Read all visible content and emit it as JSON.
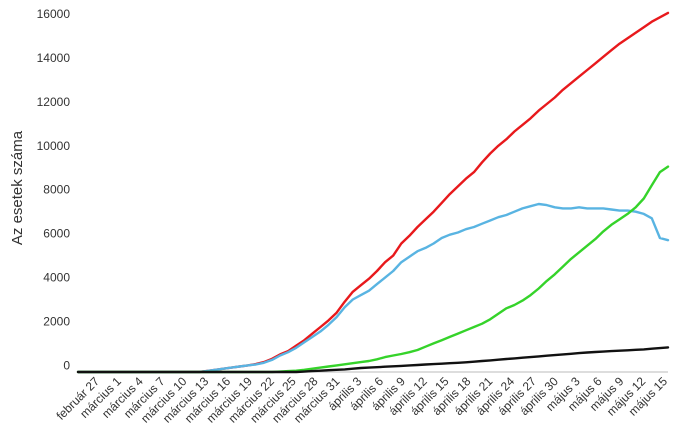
{
  "chart_data": {
    "type": "line",
    "title": "",
    "xlabel": "",
    "ylabel": "Az esetek száma",
    "ylim": [
      -300,
      16000
    ],
    "yticks": [
      0,
      2000,
      4000,
      6000,
      8000,
      10000,
      12000,
      14000,
      16000
    ],
    "grid": false,
    "legend": "none",
    "x_tick_labels": [
      "február 27",
      "március 1",
      "március 4",
      "március 7",
      "március 10",
      "március 13",
      "március 16",
      "március 19",
      "március 22",
      "március 25",
      "március 28",
      "március 31",
      "április 3",
      "április 6",
      "április 9",
      "április 12",
      "április 15",
      "április 18",
      "április 21",
      "április 24",
      "április 27",
      "április 30",
      "május 3",
      "május 6",
      "május 9",
      "május 12",
      "május 15"
    ],
    "series": [
      {
        "color": "#e8191c",
        "values": [
          -300,
          -300,
          -300,
          -300,
          -300,
          -300,
          -300,
          -300,
          -300,
          -300,
          -300,
          -300,
          -300,
          -300,
          -300,
          -300,
          -250,
          -200,
          -150,
          -100,
          -50,
          0,
          60,
          150,
          300,
          500,
          650,
          900,
          1150,
          1450,
          1750,
          2050,
          2400,
          2900,
          3350,
          3650,
          3950,
          4300,
          4700,
          5000,
          5550,
          5900,
          6300,
          6650,
          7000,
          7400,
          7800,
          8150,
          8500,
          8800,
          9250,
          9650,
          10000,
          10300,
          10650,
          10950,
          11250,
          11600,
          11900,
          12200,
          12550,
          12850,
          13150,
          13450,
          13750,
          14050,
          14350,
          14650,
          14900,
          15150,
          15400,
          15650,
          15850,
          16050
        ]
      },
      {
        "color": "#59b4e2",
        "values": [
          -300,
          -300,
          -300,
          -300,
          -300,
          -300,
          -300,
          -300,
          -300,
          -300,
          -300,
          -300,
          -300,
          -300,
          -300,
          -300,
          -250,
          -200,
          -150,
          -100,
          -50,
          0,
          40,
          120,
          250,
          450,
          600,
          800,
          1050,
          1300,
          1550,
          1850,
          2200,
          2650,
          3000,
          3200,
          3400,
          3700,
          4000,
          4300,
          4700,
          4950,
          5200,
          5350,
          5550,
          5800,
          5950,
          6050,
          6200,
          6300,
          6450,
          6600,
          6750,
          6850,
          7000,
          7150,
          7250,
          7350,
          7300,
          7200,
          7150,
          7150,
          7200,
          7150,
          7150,
          7150,
          7100,
          7050,
          7050,
          7000,
          6900,
          6700,
          5800,
          5700
        ]
      },
      {
        "color": "#35d32a",
        "values": [
          -300,
          -300,
          -300,
          -300,
          -300,
          -300,
          -300,
          -300,
          -300,
          -300,
          -300,
          -300,
          -300,
          -300,
          -300,
          -300,
          -300,
          -300,
          -300,
          -300,
          -300,
          -300,
          -300,
          -300,
          -300,
          -280,
          -260,
          -240,
          -200,
          -150,
          -100,
          -50,
          0,
          50,
          100,
          150,
          200,
          280,
          380,
          450,
          520,
          600,
          700,
          850,
          1000,
          1150,
          1300,
          1450,
          1600,
          1750,
          1900,
          2100,
          2350,
          2600,
          2750,
          2950,
          3200,
          3500,
          3850,
          4150,
          4500,
          4850,
          5150,
          5450,
          5750,
          6100,
          6400,
          6650,
          6900,
          7200,
          7600,
          8200,
          8800,
          9050
        ]
      },
      {
        "color": "#111111",
        "values": [
          -300,
          -300,
          -300,
          -300,
          -300,
          -300,
          -300,
          -300,
          -300,
          -300,
          -300,
          -300,
          -300,
          -300,
          -300,
          -300,
          -300,
          -300,
          -300,
          -300,
          -300,
          -300,
          -300,
          -300,
          -300,
          -300,
          -300,
          -300,
          -280,
          -260,
          -240,
          -220,
          -200,
          -180,
          -150,
          -120,
          -100,
          -80,
          -60,
          -40,
          -20,
          0,
          20,
          40,
          60,
          80,
          100,
          120,
          140,
          170,
          200,
          230,
          260,
          290,
          320,
          350,
          380,
          410,
          440,
          470,
          500,
          530,
          560,
          590,
          610,
          630,
          650,
          670,
          690,
          710,
          730,
          760,
          790,
          820
        ]
      }
    ]
  }
}
